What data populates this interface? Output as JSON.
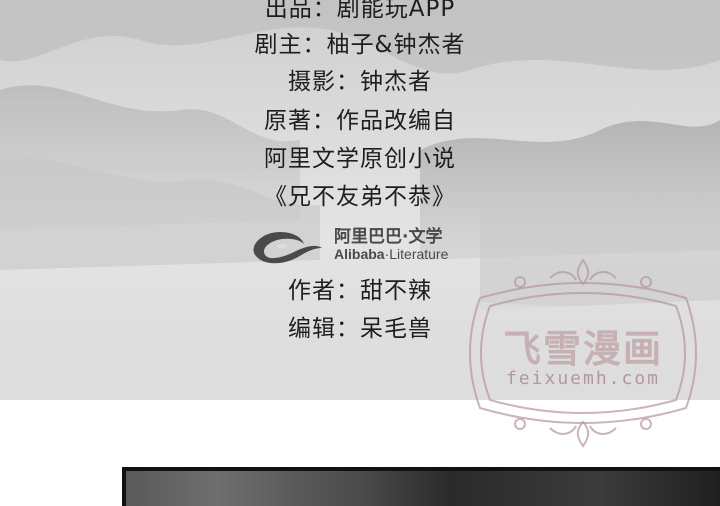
{
  "credits": {
    "producer": "出品：剧能玩APP",
    "screenwriter": "剧主：柚子&钟杰者",
    "photography": "摄影：钟杰者",
    "original": "原著：作品改编自",
    "source": "阿里文学原创小说",
    "novel_title": "《兄不友弟不恭》",
    "author": "作者：甜不辣",
    "editor": "编辑：呆毛兽"
  },
  "logo": {
    "cn": "阿里巴巴·文学",
    "en_bold": "Alibaba",
    "en_rest": "·Literature"
  },
  "watermark": {
    "cn": "飞雪漫画",
    "en": "feixuemh.com"
  },
  "colors": {
    "background_top": "#d8d8d8",
    "text": "#1e1e1e",
    "watermark": "#c2a6ab"
  }
}
